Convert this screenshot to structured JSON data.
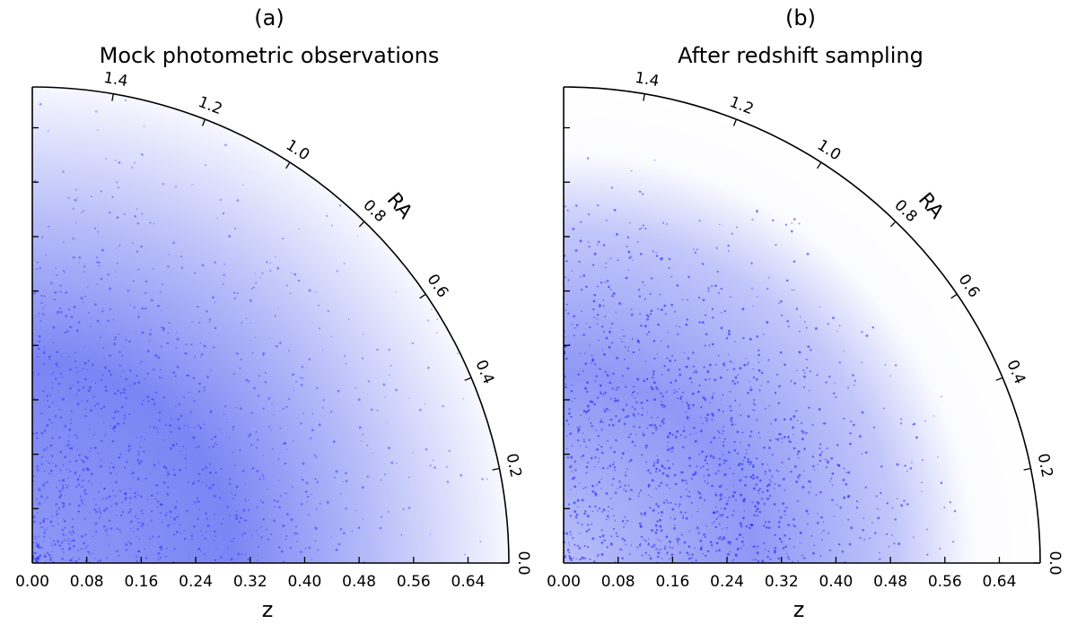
{
  "chart_data": [
    {
      "type": "scatter",
      "projection": "polar-wedge",
      "panel_label": "(a)",
      "title": "Mock photometric observations",
      "radial_label": "z",
      "angular_label": "RA",
      "radial_ticks": [
        "0.00",
        "0.08",
        "0.16",
        "0.24",
        "0.32",
        "0.40",
        "0.48",
        "0.56",
        "0.64"
      ],
      "angular_ticks": [
        "0.0",
        "0.2",
        "0.4",
        "0.6",
        "0.8",
        "1.0",
        "1.2",
        "1.4"
      ],
      "radial_range": [
        0,
        0.7
      ],
      "angular_range": [
        0,
        1.5708
      ],
      "point_color": "#1a1aff",
      "density_profile": {
        "peak_z": 0.28,
        "max_z": 0.7,
        "spread": 0.2
      }
    },
    {
      "type": "scatter",
      "projection": "polar-wedge",
      "panel_label": "(b)",
      "title": "After redshift sampling",
      "radial_label": "z",
      "angular_label": "RA",
      "radial_ticks": [
        "0.00",
        "0.08",
        "0.16",
        "0.24",
        "0.32",
        "0.40",
        "0.48",
        "0.56",
        "0.64"
      ],
      "angular_ticks": [
        "0.0",
        "0.2",
        "0.4",
        "0.6",
        "0.8",
        "1.0",
        "1.2",
        "1.4"
      ],
      "radial_range": [
        0,
        0.7
      ],
      "angular_range": [
        0,
        1.5708
      ],
      "point_color": "#1a1aff",
      "density_profile": {
        "peak_z": 0.3,
        "max_z": 0.61,
        "spread": 0.14
      }
    }
  ]
}
